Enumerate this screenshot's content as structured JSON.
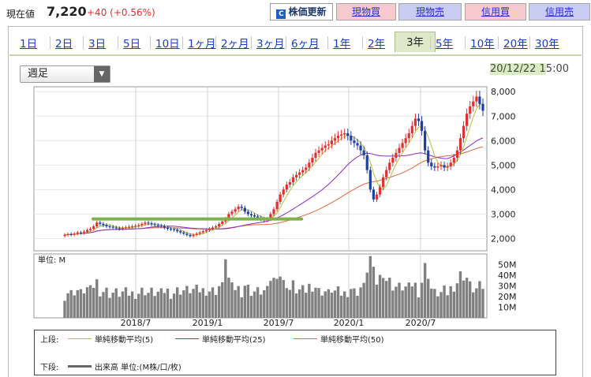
{
  "header": {
    "price_label": "現在値",
    "price_value": "7,220",
    "price_change": "+40 (+0.56%)",
    "buttons": {
      "update": "株価更新",
      "spot_buy": "現物買",
      "spot_sell": "現物売",
      "margin_buy": "信用買",
      "margin_sell": "信用売"
    }
  },
  "range_tabs": [
    "1日",
    "2日",
    "3日",
    "5日",
    "10日",
    "1ヶ月",
    "2ヶ月",
    "3ヶ月",
    "6ヶ月",
    "1年",
    "2年",
    "3年",
    "5年",
    "10年",
    "20年",
    "30年"
  ],
  "active_tab": "3年",
  "period_select": "週足",
  "datetime": {
    "date": "20/12/22 1",
    "time": "5:00"
  },
  "colors": {
    "up": "#e0312e",
    "down": "#1f3fa3",
    "ma5": "#b4c23a",
    "ma25": "#8a2bc2",
    "ma50": "#e06a3a",
    "support": "#80b050",
    "volume": "#808080"
  },
  "chart_data": [
    {
      "type": "candlestick",
      "ylim": [
        1500,
        8200
      ],
      "y_ticks": [
        "8,000",
        "7,000",
        "6,000",
        "5,000",
        "4,000",
        "3,000",
        "2,000"
      ],
      "x_ticks": [
        "2018/7",
        "2019/1",
        "2019/7",
        "2020/1",
        "2020/7"
      ],
      "weekly_close": [
        2150,
        2180,
        2160,
        2200,
        2250,
        2230,
        2280,
        2350,
        2400,
        2500,
        2650,
        2600,
        2550,
        2500,
        2480,
        2450,
        2420,
        2400,
        2430,
        2460,
        2480,
        2500,
        2520,
        2550,
        2600,
        2650,
        2620,
        2580,
        2550,
        2520,
        2500,
        2450,
        2400,
        2380,
        2350,
        2300,
        2250,
        2200,
        2150,
        2100,
        2150,
        2200,
        2250,
        2300,
        2350,
        2400,
        2450,
        2500,
        2600,
        2700,
        2800,
        3000,
        3100,
        3200,
        3300,
        3250,
        3100,
        3000,
        2950,
        2900,
        2850,
        2800,
        2750,
        2800,
        3000,
        3200,
        3500,
        3800,
        4000,
        4200,
        4300,
        4500,
        4600,
        4700,
        4800,
        4900,
        5100,
        5300,
        5500,
        5600,
        5700,
        5800,
        5850,
        6000,
        6100,
        6200,
        6250,
        6300,
        6200,
        6000,
        5900,
        5800,
        5600,
        5400,
        4800,
        4000,
        3600,
        3800,
        4100,
        4500,
        4800,
        5100,
        5300,
        5500,
        5700,
        5900,
        6100,
        6300,
        6600,
        6900,
        6800,
        6400,
        5600,
        5100,
        4950,
        4900,
        4950,
        5000,
        4900,
        4950,
        5100,
        5300,
        5600,
        6100,
        6600,
        7100,
        7400,
        7600,
        7800,
        7500,
        7220
      ],
      "ma_labels": {
        "upper": "上段:",
        "lower": "下段:"
      },
      "series": [
        {
          "name": "単純移動平均(5)"
        },
        {
          "name": "単純移動平均(25)"
        },
        {
          "name": "単純移動平均(50)"
        }
      ],
      "support_level": 2800
    },
    {
      "type": "bar",
      "unit_label": "単位: M",
      "y_ticks": [
        "50M",
        "40M",
        "30M",
        "20M",
        "10M"
      ],
      "ylim": [
        0,
        60
      ],
      "legend": "出来高 単位:(M株/口/枚)"
    }
  ]
}
